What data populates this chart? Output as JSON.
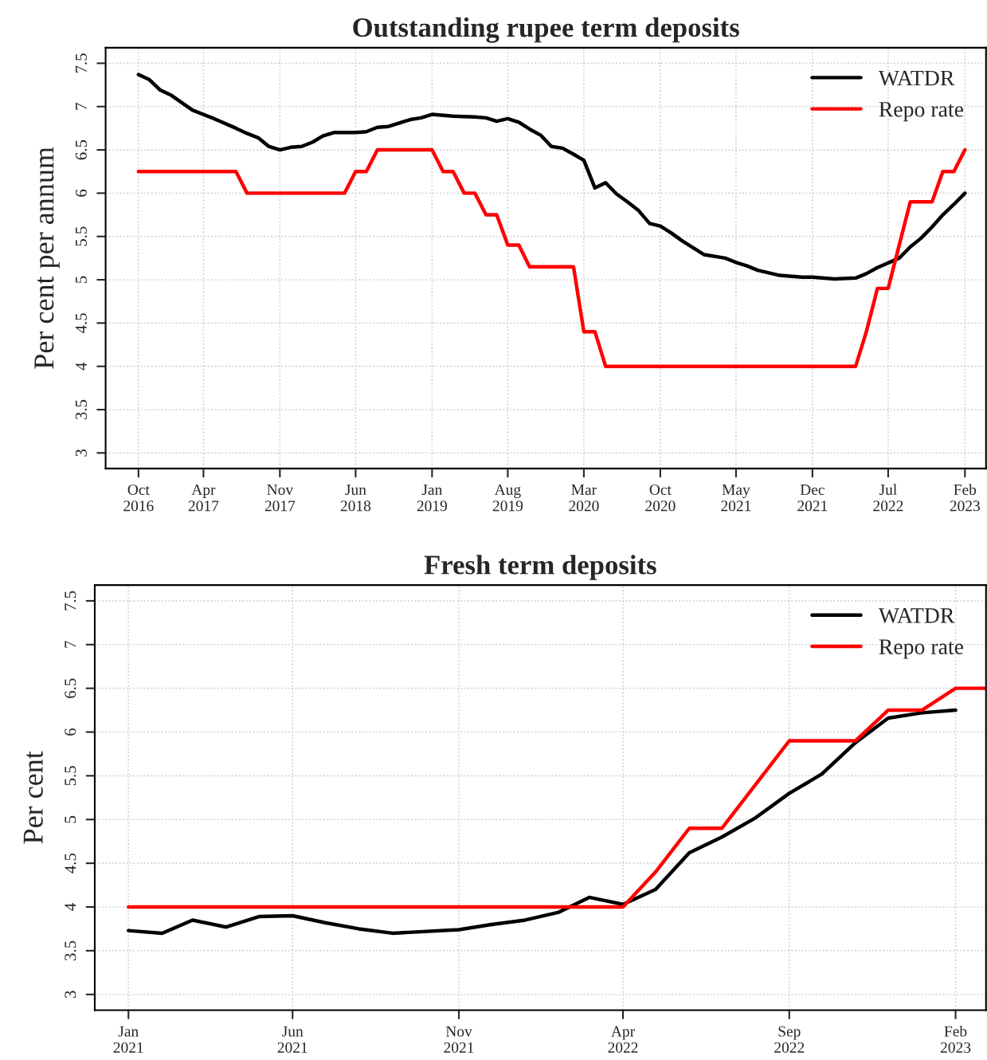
{
  "chart_data": [
    {
      "type": "line",
      "title": "Outstanding rupee term deposits",
      "ylabel": "Per cent per annum",
      "xlim": [
        "2016-07-01",
        "2023-04-01"
      ],
      "ylim": [
        2.82,
        7.68
      ],
      "xticks": [
        {
          "value": "2016-10",
          "label": "Oct\n2016"
        },
        {
          "value": "2017-04",
          "label": "Apr\n2017"
        },
        {
          "value": "2017-11",
          "label": "Nov\n2017"
        },
        {
          "value": "2018-06",
          "label": "Jun\n2018"
        },
        {
          "value": "2019-01",
          "label": "Jan\n2019"
        },
        {
          "value": "2019-08",
          "label": "Aug\n2019"
        },
        {
          "value": "2020-03",
          "label": "Mar\n2020"
        },
        {
          "value": "2020-10",
          "label": "Oct\n2020"
        },
        {
          "value": "2021-05",
          "label": "May\n2021"
        },
        {
          "value": "2021-12",
          "label": "Dec\n2021"
        },
        {
          "value": "2022-07",
          "label": "Jul\n2022"
        },
        {
          "value": "2023-02",
          "label": "Feb\n2023"
        }
      ],
      "yticks": [
        3,
        3.5,
        4,
        4.5,
        5,
        5.5,
        6,
        6.5,
        7,
        7.5
      ],
      "grid": true,
      "legend": "top right",
      "line_style": "solid",
      "series": [
        {
          "name": "WATDR",
          "color": "#000000",
          "x": [
            "2016-10",
            "2016-11",
            "2016-12",
            "2017-01",
            "2017-03",
            "2017-05",
            "2017-07",
            "2017-08",
            "2017-09",
            "2017-10",
            "2017-11",
            "2017-12",
            "2018-01",
            "2018-02",
            "2018-03",
            "2018-04",
            "2018-06",
            "2018-07",
            "2018-08",
            "2018-09",
            "2018-11",
            "2018-12",
            "2019-01",
            "2019-03",
            "2019-05",
            "2019-06",
            "2019-07",
            "2019-08",
            "2019-09",
            "2019-10",
            "2019-11",
            "2019-12",
            "2020-01",
            "2020-02",
            "2020-03",
            "2020-04",
            "2020-05",
            "2020-06",
            "2020-07",
            "2020-08",
            "2020-09",
            "2020-10",
            "2020-11",
            "2020-12",
            "2021-01",
            "2021-02",
            "2021-04",
            "2021-05",
            "2021-06",
            "2021-07",
            "2021-08",
            "2021-09",
            "2021-11",
            "2021-12",
            "2022-02",
            "2022-04",
            "2022-05",
            "2022-06",
            "2022-08",
            "2022-09",
            "2022-10",
            "2022-11",
            "2022-12",
            "2023-01",
            "2023-02"
          ],
          "values": [
            7.37,
            7.31,
            7.19,
            7.13,
            6.96,
            6.86,
            6.75,
            6.69,
            6.64,
            6.54,
            6.5,
            6.53,
            6.54,
            6.59,
            6.66,
            6.7,
            6.7,
            6.71,
            6.76,
            6.77,
            6.85,
            6.87,
            6.91,
            6.89,
            6.88,
            6.87,
            6.83,
            6.86,
            6.82,
            6.74,
            6.67,
            6.54,
            6.52,
            6.45,
            6.38,
            6.06,
            6.12,
            5.99,
            5.9,
            5.8,
            5.65,
            5.62,
            5.54,
            5.45,
            5.37,
            5.29,
            5.25,
            5.2,
            5.16,
            5.11,
            5.08,
            5.05,
            5.03,
            5.03,
            5.01,
            5.02,
            5.07,
            5.14,
            5.25,
            5.38,
            5.48,
            5.61,
            5.75,
            5.87,
            6.0
          ]
        },
        {
          "name": "Repo rate",
          "color": "#ff0000",
          "x": [
            "2016-10",
            "2017-07",
            "2017-08",
            "2018-05",
            "2018-06",
            "2018-07",
            "2018-08",
            "2019-01",
            "2019-02",
            "2019-03",
            "2019-04",
            "2019-05",
            "2019-06",
            "2019-07",
            "2019-08",
            "2019-09",
            "2019-10",
            "2020-02",
            "2020-03",
            "2020-04",
            "2020-05",
            "2022-04",
            "2022-05",
            "2022-06",
            "2022-07",
            "2022-09",
            "2022-11",
            "2022-12",
            "2023-01",
            "2023-02"
          ],
          "values": [
            6.25,
            6.25,
            6.0,
            6.0,
            6.25,
            6.25,
            6.5,
            6.5,
            6.25,
            6.25,
            6.0,
            6.0,
            5.75,
            5.75,
            5.4,
            5.4,
            5.15,
            5.15,
            4.4,
            4.4,
            4.0,
            4.0,
            4.4,
            4.9,
            4.9,
            5.9,
            5.9,
            6.25,
            6.25,
            6.5
          ]
        }
      ]
    },
    {
      "type": "line",
      "title": "Fresh term deposits",
      "ylabel": "Per cent",
      "xlim": [
        "2020-12-01",
        "2023-03-01"
      ],
      "ylim": [
        2.82,
        7.68
      ],
      "xticks": [
        {
          "value": "2021-01",
          "label": "Jan\n2021"
        },
        {
          "value": "2021-06",
          "label": "Jun\n2021"
        },
        {
          "value": "2021-11",
          "label": "Nov\n2021"
        },
        {
          "value": "2022-04",
          "label": "Apr\n2022"
        },
        {
          "value": "2022-09",
          "label": "Sep\n2022"
        },
        {
          "value": "2023-02",
          "label": "Feb\n2023"
        }
      ],
      "yticks": [
        3,
        3.5,
        4,
        4.5,
        5,
        5.5,
        6,
        6.5,
        7,
        7.5
      ],
      "grid": true,
      "legend": "top right",
      "line_style": "solid",
      "series": [
        {
          "name": "WATDR",
          "color": "#000000",
          "x": [
            "2021-01",
            "2021-02",
            "2021-03",
            "2021-04",
            "2021-05",
            "2021-06",
            "2021-07",
            "2021-08",
            "2021-09",
            "2021-11",
            "2021-12",
            "2022-01",
            "2022-02",
            "2022-03",
            "2022-04",
            "2022-05",
            "2022-06",
            "2022-07",
            "2022-08",
            "2022-09",
            "2022-10",
            "2022-11",
            "2022-12",
            "2023-01",
            "2023-02"
          ],
          "values": [
            3.73,
            3.7,
            3.85,
            3.77,
            3.89,
            3.9,
            3.82,
            3.75,
            3.7,
            3.74,
            3.8,
            3.85,
            3.94,
            4.11,
            4.03,
            4.2,
            4.62,
            4.8,
            5.02,
            5.3,
            5.52,
            5.88,
            6.16,
            6.22,
            6.25
          ]
        },
        {
          "name": "Repo rate",
          "color": "#ff0000",
          "x": [
            "2021-01",
            "2022-04",
            "2022-05",
            "2022-06",
            "2022-07",
            "2022-09",
            "2022-11",
            "2022-12",
            "2023-01",
            "2023-02",
            "2023-03-01"
          ],
          "values": [
            4.0,
            4.0,
            4.4,
            4.9,
            4.9,
            5.9,
            5.9,
            6.25,
            6.25,
            6.5,
            6.5
          ]
        }
      ]
    }
  ]
}
